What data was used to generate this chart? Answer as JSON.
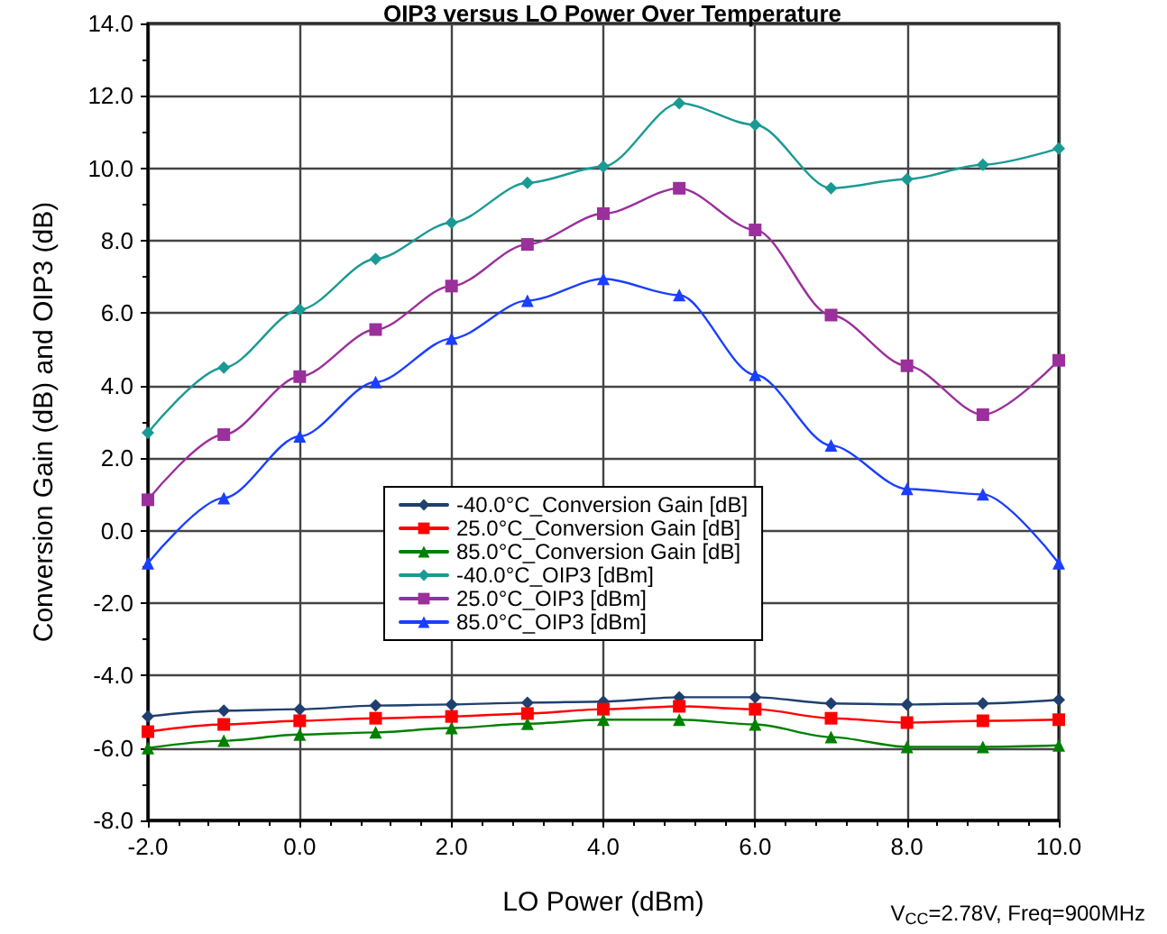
{
  "chart_data": {
    "type": "line",
    "title": "OIP3 versus LO Power Over Temperature",
    "xlabel": "LO Power (dBm)",
    "ylabel": "Conversion Gain (dB) and OIP3 (dB)",
    "annotations": [
      "V$_{CC}$=2.78V, Freq=900MHz"
    ],
    "x": [
      -2,
      -1,
      0,
      1,
      2,
      3,
      4,
      5,
      6,
      7,
      8,
      9,
      10
    ],
    "xlim": [
      -2,
      10
    ],
    "xticks": [
      {
        "value": -2,
        "label": "-2.0"
      },
      {
        "value": 0,
        "label": "0.0"
      },
      {
        "value": 2,
        "label": "2.0"
      },
      {
        "value": 4,
        "label": "4.0"
      },
      {
        "value": 6,
        "label": "6.0"
      },
      {
        "value": 8,
        "label": "8.0"
      },
      {
        "value": 10,
        "label": "10.0"
      }
    ],
    "ylim": [
      -8,
      14
    ],
    "yticks": [
      {
        "value": -8,
        "label": "-8.0"
      },
      {
        "value": -6,
        "label": "-6.0"
      },
      {
        "value": -4,
        "label": "-4.0"
      },
      {
        "value": -2,
        "label": "-2.0"
      },
      {
        "value": 0,
        "label": "0.0"
      },
      {
        "value": 2,
        "label": "2.0"
      },
      {
        "value": 4,
        "label": "4.0"
      },
      {
        "value": 6,
        "label": "6.0"
      },
      {
        "value": 8,
        "label": "8.0"
      },
      {
        "value": 10,
        "label": "10.0"
      },
      {
        "value": 12,
        "label": "12.0"
      },
      {
        "value": 14,
        "label": "14.0"
      }
    ],
    "grid": true,
    "legend": "bottom",
    "series": [
      {
        "name": "-40.0°C_Conversion Gain [dB]",
        "color": "#1f3f6e",
        "marker": "diamond",
        "values": [
          -5.13,
          -4.97,
          -4.93,
          -4.83,
          -4.8,
          -4.75,
          -4.72,
          -4.6,
          -4.6,
          -4.77,
          -4.8,
          -4.77,
          -4.67
        ]
      },
      {
        "name": "25.0°C_Conversion Gain [dB]",
        "color": "#ff0000",
        "marker": "square",
        "values": [
          -5.55,
          -5.35,
          -5.25,
          -5.18,
          -5.13,
          -5.05,
          -4.93,
          -4.85,
          -4.93,
          -5.18,
          -5.3,
          -5.25,
          -5.22
        ]
      },
      {
        "name": "85.0°C_Conversion Gain [dB]",
        "color": "#008000",
        "marker": "triangle",
        "values": [
          -6.0,
          -5.8,
          -5.63,
          -5.57,
          -5.45,
          -5.33,
          -5.22,
          -5.22,
          -5.35,
          -5.7,
          -5.97,
          -5.97,
          -5.93
        ]
      },
      {
        "name": "-40.0°C_OIP3 [dBm]",
        "color": "#1a9a94",
        "marker": "diamond",
        "values": [
          2.7,
          4.5,
          6.1,
          7.5,
          8.5,
          9.6,
          10.05,
          11.8,
          11.2,
          9.45,
          9.7,
          10.1,
          10.55
        ]
      },
      {
        "name": "25.0°C_OIP3 [dBm]",
        "color": "#9b2f9b",
        "marker": "square",
        "values": [
          0.85,
          2.65,
          4.25,
          5.55,
          6.75,
          7.9,
          8.75,
          9.45,
          8.3,
          5.95,
          4.55,
          3.2,
          4.7
        ]
      },
      {
        "name": "85.0°C_OIP3 [dBm]",
        "color": "#1a3fff",
        "marker": "triangle",
        "values": [
          -0.9,
          0.9,
          2.6,
          4.1,
          5.3,
          6.35,
          6.95,
          6.5,
          4.3,
          2.35,
          1.15,
          1.0,
          -0.9
        ]
      }
    ]
  }
}
